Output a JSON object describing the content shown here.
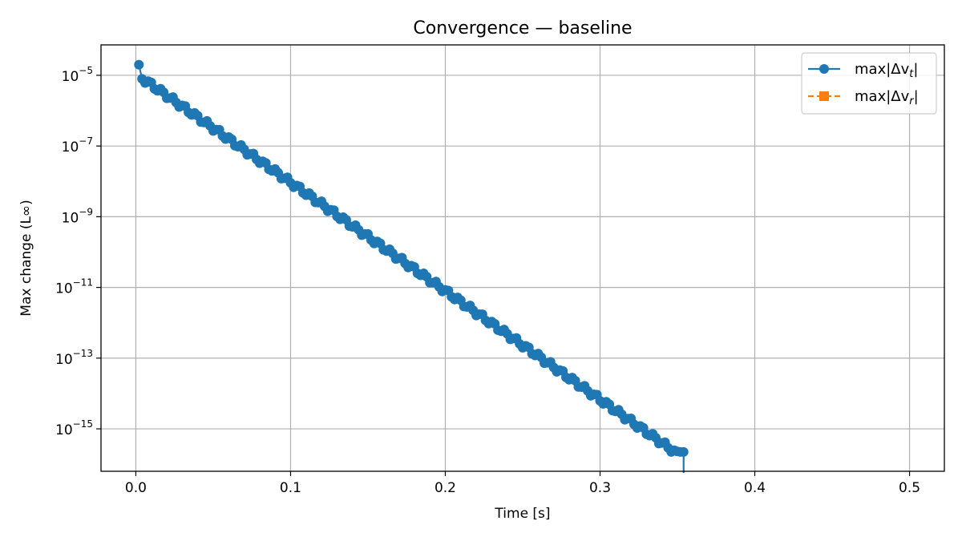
{
  "chart_data": {
    "type": "line",
    "title": "Convergence — baseline",
    "xlabel": "Time [s]",
    "ylabel": "Max change (L∞)",
    "xlim": [
      -0.0225,
      0.5225
    ],
    "xticks": [
      0.0,
      0.1,
      0.2,
      0.3,
      0.4,
      0.5
    ],
    "xtick_labels": [
      "0.0",
      "0.1",
      "0.2",
      "0.3",
      "0.4",
      "0.5"
    ],
    "yscale": "log",
    "ylim_log10": [
      -16.2,
      -4.14
    ],
    "ytick_exponents": [
      -5,
      -7,
      -9,
      -11,
      -13,
      -15
    ],
    "grid": true,
    "legend_position": "top-right",
    "series": [
      {
        "name": "max|Δv_t|",
        "name_base": "max|Δv",
        "name_sub": "t",
        "name_tail": "|",
        "color": "#1f77b4",
        "marker": "circle",
        "linestyle": "solid",
        "x_start": 0.002,
        "x_step": 0.002,
        "y_first_log10": -4.7,
        "y_start_log10": -5.02,
        "y_slope_log10_per_s": -30.7,
        "y_floor_value": 2.22e-16,
        "x_end": 0.354,
        "final_value": 0
      },
      {
        "name": "max|Δv_r|",
        "name_base": "max|Δv",
        "name_sub": "r",
        "name_tail": "|",
        "color": "#ff7f0e",
        "marker": "square",
        "linestyle": "dashed",
        "points": []
      }
    ]
  }
}
